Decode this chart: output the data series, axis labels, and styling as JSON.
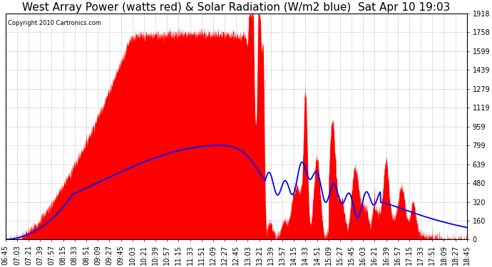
{
  "title": "West Array Power (watts red) & Solar Radiation (W/m2 blue)  Sat Apr 10 19:03",
  "copyright": "Copyright 2010 Cartronics.com",
  "ymax": 1918.3,
  "ymin": 0.0,
  "yticks": [
    0.0,
    159.9,
    319.7,
    479.6,
    639.4,
    799.3,
    959.2,
    1119.0,
    1278.9,
    1438.8,
    1598.6,
    1758.5,
    1918.3
  ],
  "xticks": [
    "06:45",
    "07:03",
    "07:21",
    "07:39",
    "07:57",
    "08:15",
    "08:33",
    "08:51",
    "09:09",
    "09:27",
    "09:45",
    "10:03",
    "10:21",
    "10:39",
    "10:57",
    "11:15",
    "11:33",
    "11:51",
    "12:09",
    "12:27",
    "12:45",
    "13:03",
    "13:21",
    "13:39",
    "13:57",
    "14:15",
    "14:33",
    "14:51",
    "15:09",
    "15:27",
    "15:45",
    "16:03",
    "16:21",
    "16:39",
    "16:57",
    "17:15",
    "17:33",
    "17:51",
    "18:09",
    "18:27",
    "18:45"
  ],
  "background_color": "#ffffff",
  "plot_bg_color": "#ffffff",
  "grid_color": "#aaaaaa",
  "red_fill_color": "#ff0000",
  "blue_line_color": "#0000ff",
  "title_fontsize": 11,
  "tick_fontsize": 7
}
